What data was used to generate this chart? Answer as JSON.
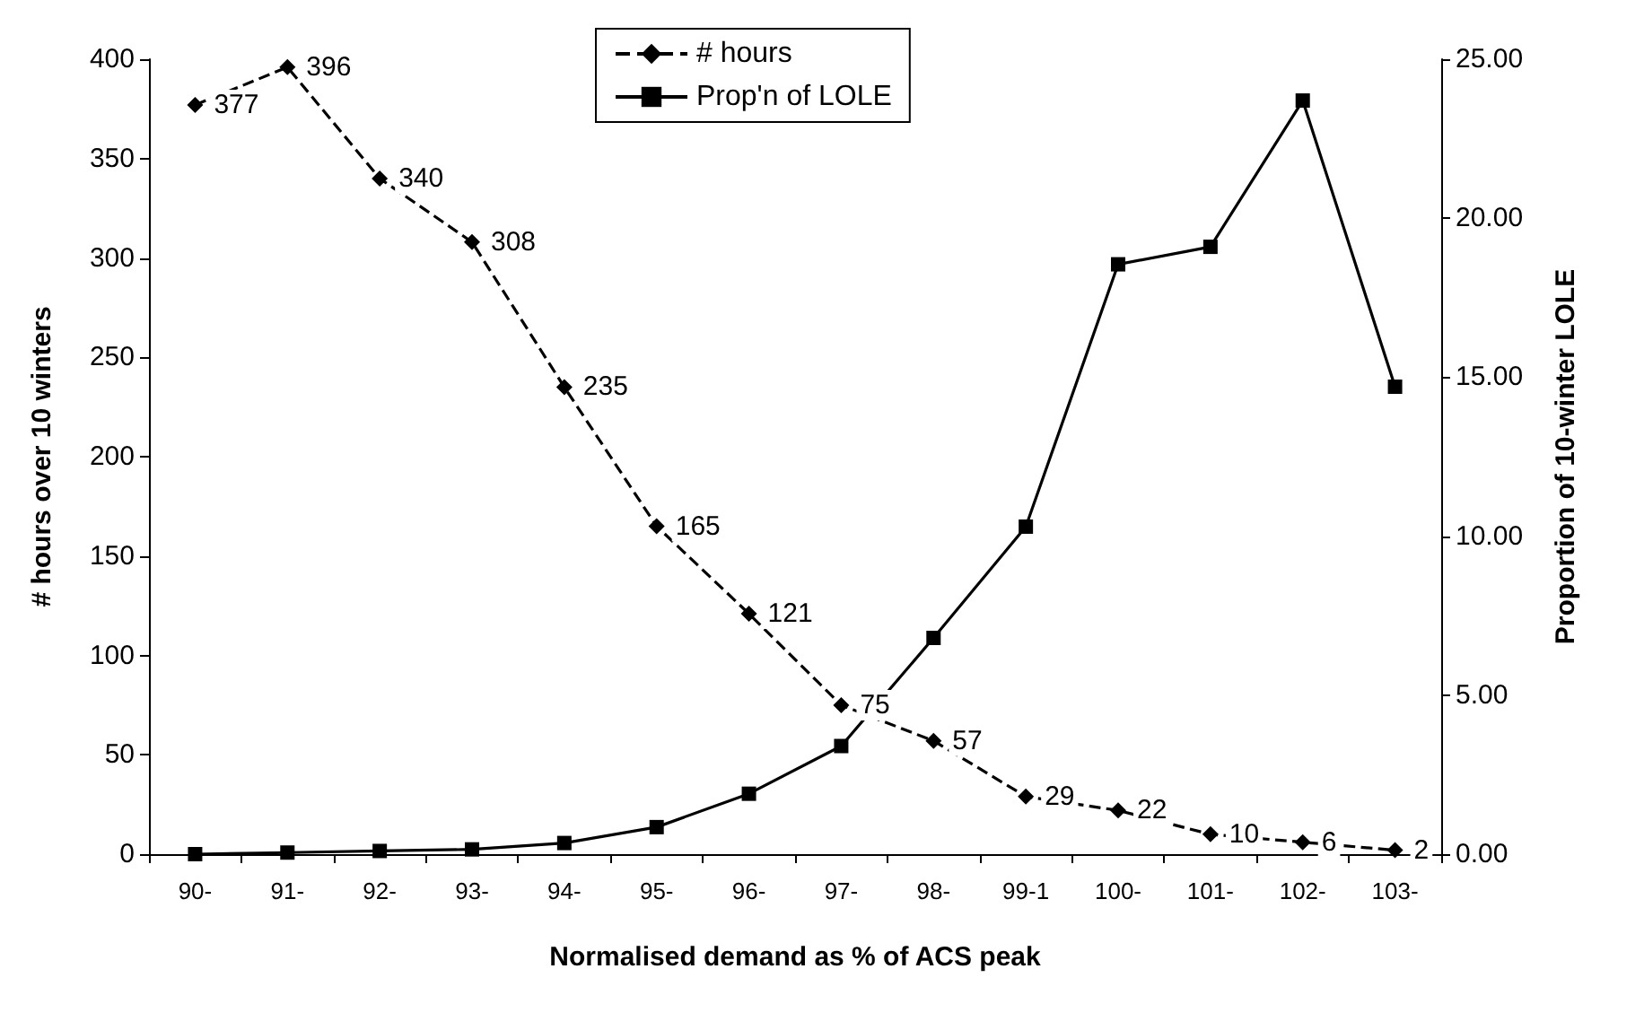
{
  "chart_data": {
    "type": "line",
    "xlabel": "Normalised demand as % of ACS peak",
    "ylabel": "# hours over 10 winters",
    "y2label": "Proportion of 10-winter LOLE",
    "categories": [
      "90-",
      "91-",
      "92-",
      "93-",
      "94-",
      "95-",
      "96-",
      "97-",
      "98-",
      "99-1",
      "100-",
      "101-",
      "102-",
      "103-"
    ],
    "series": [
      {
        "name": "# hours",
        "color": "#000000",
        "marker": "diamond",
        "line_style": "dashed",
        "values": [
          377,
          396,
          340,
          308,
          235,
          165,
          121,
          75,
          57,
          29,
          22,
          10,
          6,
          2
        ],
        "value_labels": [
          "377",
          "396",
          "340",
          "308",
          "235",
          "165",
          "121",
          "75",
          "57",
          "29",
          "22",
          "10",
          "6",
          "2"
        ]
      },
      {
        "name": "Prop'n of LOLE",
        "color": "#000000",
        "marker": "square",
        "line_style": "solid",
        "axis": "y2",
        "values": [
          0,
          0.05,
          0.1,
          0.15,
          0.35,
          0.85,
          1.9,
          3.4,
          6.8,
          10.3,
          18.55,
          19.1,
          23.7,
          14.7
        ]
      }
    ],
    "ylim": [
      0,
      400
    ],
    "yticks": [
      0,
      50,
      100,
      150,
      200,
      250,
      300,
      350,
      400
    ],
    "y2lim": [
      0,
      25
    ],
    "y2ticks": [
      {
        "value": 0,
        "label": "0.00"
      },
      {
        "value": 5,
        "label": "5.00"
      },
      {
        "value": 10,
        "label": "10.00"
      },
      {
        "value": 15,
        "label": "15.00"
      },
      {
        "value": 20,
        "label": "20.00"
      },
      {
        "value": 25,
        "label": "25.00"
      }
    ],
    "grid": false,
    "legend": "top"
  }
}
